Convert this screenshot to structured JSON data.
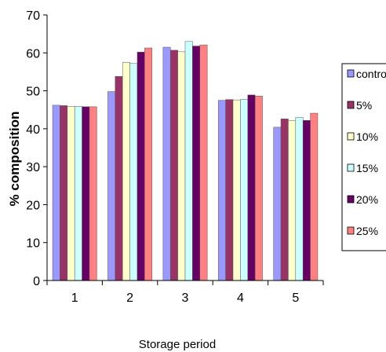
{
  "chart_data": {
    "type": "bar",
    "title": "",
    "xlabel": "Storage period",
    "ylabel": "% composition",
    "categories": [
      "1",
      "2",
      "3",
      "4",
      "5"
    ],
    "ylim": [
      0,
      70
    ],
    "yticks": [
      "0",
      "10",
      "20",
      "30",
      "40",
      "50",
      "60",
      "70"
    ],
    "grid": false,
    "legend_position": "right",
    "series": [
      {
        "name": "control",
        "color": "#9999ff",
        "values": [
          46.2,
          49.8,
          61.5,
          47.5,
          40.4
        ]
      },
      {
        "name": "5%",
        "color": "#993366",
        "values": [
          46.1,
          53.8,
          60.7,
          47.7,
          42.6
        ]
      },
      {
        "name": "10%",
        "color": "#ffffcc",
        "values": [
          45.9,
          57.5,
          60.3,
          47.6,
          42.2
        ]
      },
      {
        "name": "15%",
        "color": "#ccffff",
        "values": [
          45.9,
          57.2,
          63.0,
          47.7,
          43.0
        ]
      },
      {
        "name": "20%",
        "color": "#660066",
        "values": [
          45.8,
          60.2,
          61.8,
          48.9,
          42.2
        ]
      },
      {
        "name": "25%",
        "color": "#ff8080",
        "values": [
          45.8,
          61.3,
          62.1,
          48.6,
          44.1
        ]
      }
    ]
  }
}
